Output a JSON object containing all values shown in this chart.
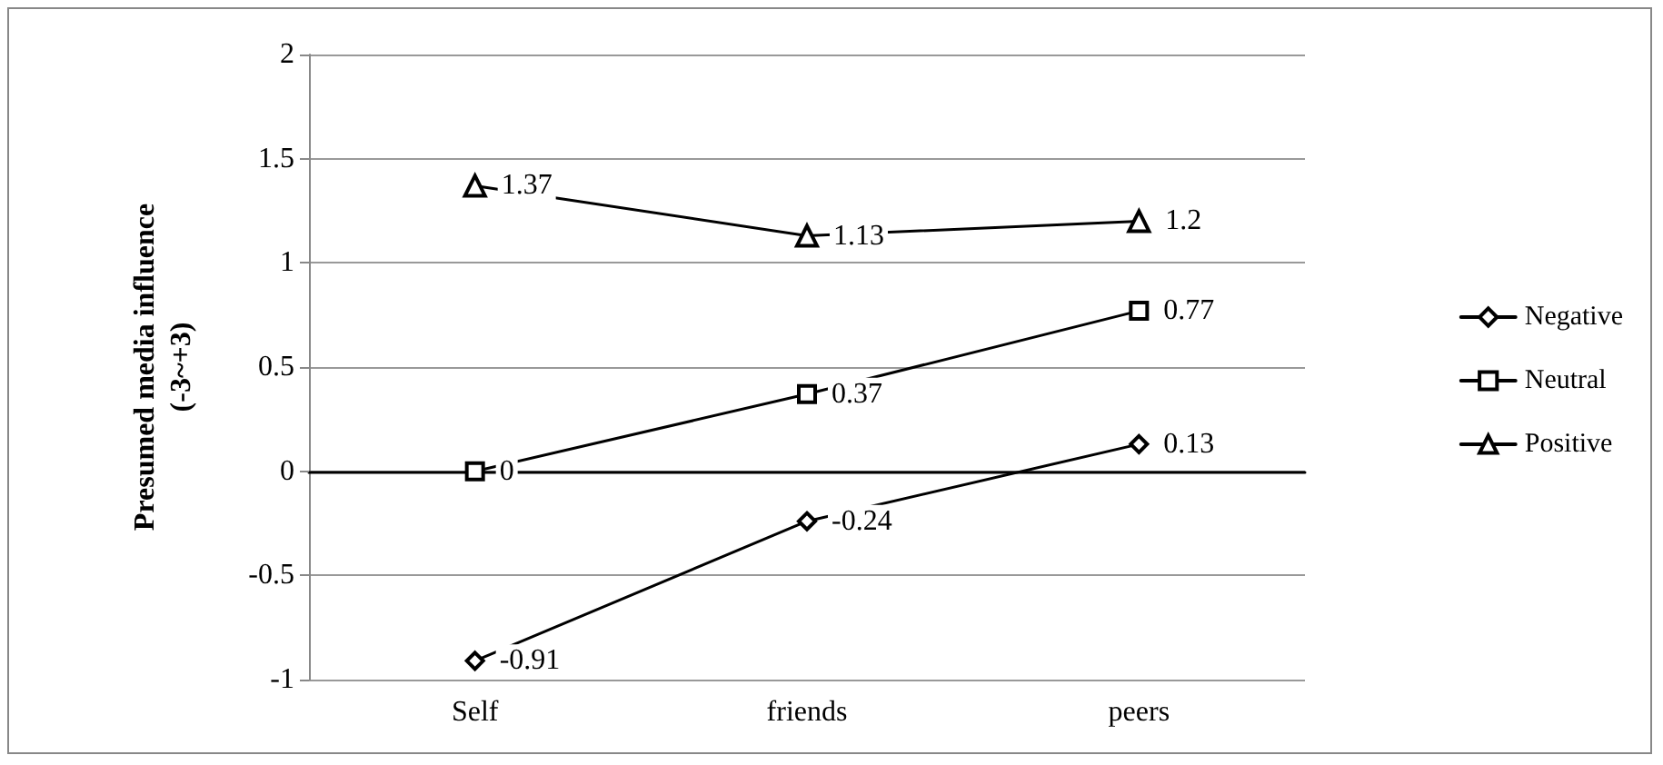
{
  "chart_data": {
    "type": "line",
    "ylabel": "Presumed media influence\n(-3~+3)",
    "categories": [
      "Self",
      "friends",
      "peers"
    ],
    "series": [
      {
        "name": "Negative",
        "color": "#000000",
        "marker": "diamond",
        "values": [
          -0.91,
          -0.24,
          0.13
        ]
      },
      {
        "name": "Neutral",
        "color": "#000000",
        "marker": "square",
        "values": [
          0,
          0.37,
          0.77
        ]
      },
      {
        "name": "Positive",
        "color": "#000000",
        "marker": "triangle",
        "values": [
          1.37,
          1.13,
          1.2
        ]
      }
    ],
    "ylim": [
      -1,
      2
    ],
    "yticks": [
      -1,
      -0.5,
      0,
      0.5,
      1,
      1.5,
      2
    ],
    "grid": "y",
    "legend": "right",
    "data_labels": true,
    "line_style": "solid"
  }
}
